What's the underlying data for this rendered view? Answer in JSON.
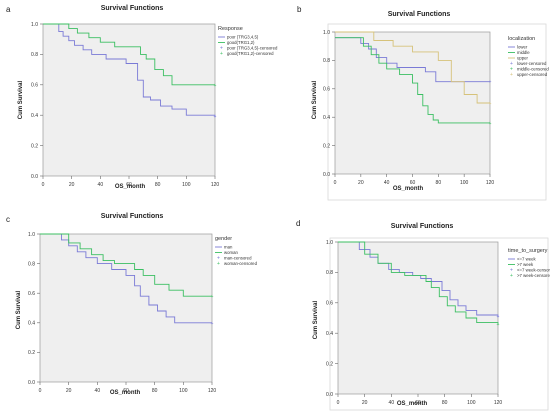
{
  "chart_data": [
    {
      "panel_label": "a",
      "type": "line",
      "title": "Survival Functions",
      "xlabel": "OS_month",
      "ylabel": "Cum Survival",
      "xlim": [
        0,
        120
      ],
      "ylim": [
        0.0,
        1.0
      ],
      "xticks": [
        "0",
        "20",
        "40",
        "60",
        "80",
        "100",
        "120"
      ],
      "yticks": [
        "0.0",
        "0.2",
        "0.4",
        "0.6",
        "0.8",
        "1.0"
      ],
      "grid": false,
      "legend_position": "right",
      "legend_title": "Response",
      "legend_entries": [
        "poor (TRG3,4,5)",
        "good(TRG1,2)",
        "poor (TRG3,4,5)-censored",
        "good(TRG1,2)-censored"
      ],
      "series": [
        {
          "name": "poor (TRG3,4,5)",
          "color": "#7a7ad6",
          "dash": false,
          "x": [
            0,
            8,
            11,
            14,
            18,
            22,
            28,
            34,
            44,
            58,
            66,
            70,
            75,
            82,
            90,
            100,
            120
          ],
          "y": [
            1.0,
            1.0,
            0.95,
            0.92,
            0.89,
            0.86,
            0.83,
            0.8,
            0.77,
            0.74,
            0.63,
            0.52,
            0.5,
            0.46,
            0.44,
            0.4,
            0.39
          ]
        },
        {
          "name": "good(TRG1,2)",
          "color": "#3bbf62",
          "dash": false,
          "x": [
            0,
            11,
            18,
            24,
            32,
            40,
            50,
            60,
            68,
            72,
            78,
            84,
            90,
            120
          ],
          "y": [
            1.0,
            1.0,
            0.97,
            0.94,
            0.91,
            0.88,
            0.85,
            0.85,
            0.8,
            0.77,
            0.7,
            0.66,
            0.6,
            0.6
          ]
        }
      ]
    },
    {
      "panel_label": "b",
      "type": "line",
      "title": "Survival Functions",
      "xlabel": "OS_month",
      "ylabel": "Cum Survival",
      "xlim": [
        0,
        120
      ],
      "ylim": [
        0.0,
        1.0
      ],
      "xticks": [
        "0",
        "20",
        "40",
        "60",
        "80",
        "100",
        "120"
      ],
      "yticks": [
        "0.0",
        "0.2",
        "0.4",
        "0.6",
        "0.8",
        "1.0"
      ],
      "grid": false,
      "legend_position": "right",
      "legend_title": "localization",
      "legend_entries": [
        "lower",
        "middle",
        "upper",
        "lower-censored",
        "middle-censored",
        "upper-censored"
      ],
      "series": [
        {
          "name": "lower",
          "color": "#7a7ad6",
          "dash": false,
          "x": [
            0,
            14,
            20,
            26,
            32,
            40,
            48,
            56,
            60,
            70,
            78,
            120
          ],
          "y": [
            0.96,
            0.96,
            0.92,
            0.88,
            0.82,
            0.78,
            0.75,
            0.75,
            0.75,
            0.72,
            0.65,
            0.65
          ]
        },
        {
          "name": "middle",
          "color": "#3bbf62",
          "dash": false,
          "x": [
            0,
            14,
            22,
            28,
            34,
            40,
            50,
            60,
            64,
            68,
            72,
            76,
            80,
            120
          ],
          "y": [
            0.96,
            0.96,
            0.9,
            0.84,
            0.78,
            0.74,
            0.7,
            0.64,
            0.56,
            0.48,
            0.42,
            0.38,
            0.36,
            0.36
          ]
        },
        {
          "name": "upper",
          "color": "#d6c27a",
          "dash": false,
          "x": [
            0,
            20,
            30,
            45,
            60,
            72,
            80,
            90,
            100,
            110,
            120
          ],
          "y": [
            1.0,
            1.0,
            0.94,
            0.9,
            0.86,
            0.86,
            0.8,
            0.65,
            0.56,
            0.5,
            0.5
          ]
        }
      ]
    },
    {
      "panel_label": "c",
      "type": "line",
      "title": "Survival Functions",
      "xlabel": "OS_month",
      "ylabel": "Cum Survival",
      "xlim": [
        0,
        120
      ],
      "ylim": [
        0.0,
        1.0
      ],
      "xticks": [
        "0",
        "20",
        "40",
        "60",
        "80",
        "100",
        "120"
      ],
      "yticks": [
        "0.0",
        "0.2",
        "0.4",
        "0.6",
        "0.8",
        "1.0"
      ],
      "grid": false,
      "legend_position": "right",
      "legend_title": "gender",
      "legend_entries": [
        "man",
        "woman",
        "man-censored",
        "woman-censored"
      ],
      "series": [
        {
          "name": "man",
          "color": "#7a7ad6",
          "dash": false,
          "x": [
            0,
            10,
            15,
            20,
            26,
            32,
            40,
            50,
            60,
            66,
            70,
            76,
            82,
            88,
            94,
            100,
            120
          ],
          "y": [
            1.0,
            1.0,
            0.96,
            0.92,
            0.88,
            0.84,
            0.8,
            0.76,
            0.72,
            0.65,
            0.58,
            0.52,
            0.48,
            0.44,
            0.4,
            0.4,
            0.4
          ]
        },
        {
          "name": "woman",
          "color": "#3bbf62",
          "dash": false,
          "x": [
            0,
            12,
            20,
            28,
            36,
            44,
            52,
            60,
            66,
            72,
            80,
            90,
            100,
            120
          ],
          "y": [
            1.0,
            1.0,
            0.94,
            0.9,
            0.86,
            0.82,
            0.8,
            0.8,
            0.76,
            0.72,
            0.66,
            0.62,
            0.58,
            0.58
          ]
        }
      ]
    },
    {
      "panel_label": "d",
      "type": "line",
      "title": "Survival Functions",
      "xlabel": "OS_month",
      "ylabel": "Cum Survival",
      "xlim": [
        0,
        120
      ],
      "ylim": [
        0.0,
        1.0
      ],
      "xticks": [
        "0",
        "20",
        "40",
        "60",
        "80",
        "100",
        "120"
      ],
      "yticks": [
        "0.0",
        "0.2",
        "0.4",
        "0.6",
        "0.8",
        "1.0"
      ],
      "grid": false,
      "legend_position": "right",
      "legend_title": "time_to_surgery",
      "legend_entries": [
        "<=7 week",
        ">7 week",
        "<=7 week-censored",
        ">7 week-censored"
      ],
      "series": [
        {
          "name": "<=7 week",
          "color": "#7a7ad6",
          "dash": false,
          "x": [
            0,
            10,
            16,
            24,
            30,
            38,
            46,
            56,
            62,
            70,
            78,
            84,
            90,
            96,
            104,
            120
          ],
          "y": [
            1.0,
            1.0,
            0.95,
            0.9,
            0.86,
            0.82,
            0.8,
            0.78,
            0.76,
            0.74,
            0.68,
            0.62,
            0.58,
            0.55,
            0.52,
            0.51
          ]
        },
        {
          "name": ">7 week",
          "color": "#3bbf62",
          "dash": false,
          "x": [
            0,
            12,
            20,
            30,
            40,
            50,
            60,
            66,
            70,
            76,
            82,
            88,
            96,
            104,
            120
          ],
          "y": [
            1.0,
            1.0,
            0.92,
            0.86,
            0.8,
            0.78,
            0.78,
            0.74,
            0.7,
            0.64,
            0.58,
            0.54,
            0.5,
            0.47,
            0.46
          ]
        }
      ]
    }
  ]
}
